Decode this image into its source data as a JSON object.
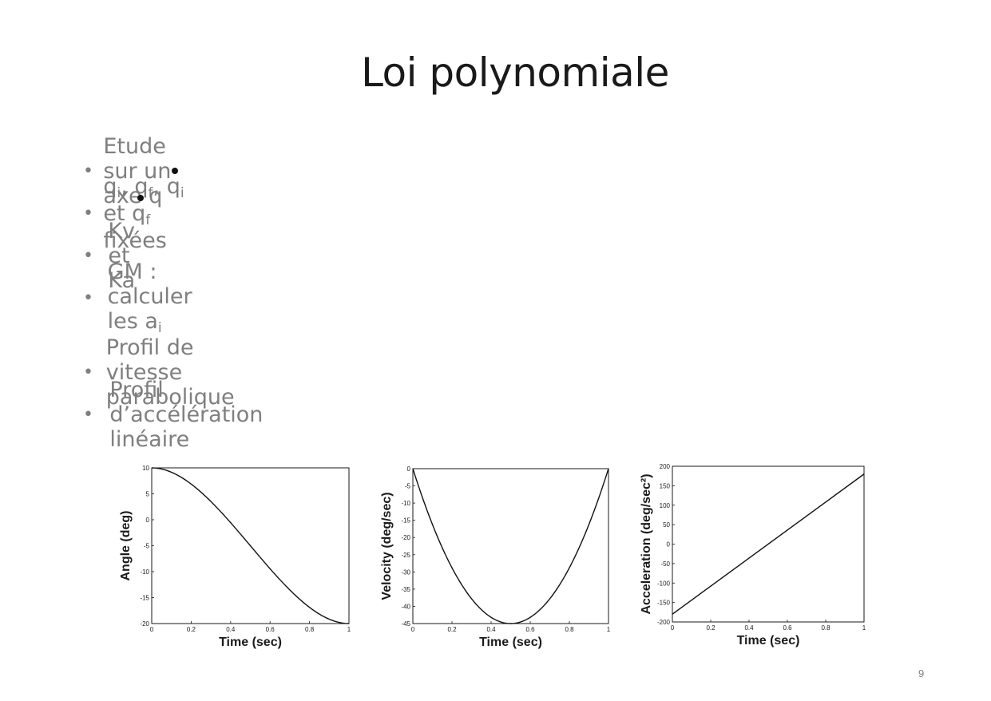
{
  "slide": {
    "title": "Loi polynomiale",
    "page_number": "9",
    "bullet_marker": "•",
    "bullets": {
      "b1": {
        "text": "Etude sur un axe q"
      },
      "b2": {
        "q": "q",
        "i": "i",
        "f": "f",
        "sep": ", ",
        "et": " et ",
        "fixees": " fixées"
      },
      "b3": {
        "text": "Kv et Ka"
      },
      "b4": {
        "text": "GM : calculer les a",
        "sub": "i"
      },
      "b5": {
        "text": "Profil de vitesse parabolique"
      },
      "b6": {
        "text": "Profil d’accélération linéaire"
      }
    }
  },
  "chart_data": [
    {
      "type": "line",
      "xlabel": "Time (sec)",
      "ylabel": "Angle (deg)",
      "xlim": [
        0,
        1
      ],
      "ylim": [
        -20,
        10
      ],
      "xticks": [
        "0",
        "0.2",
        "0.4",
        "0.6",
        "0.8",
        "1"
      ],
      "yticks": [
        "10",
        "5",
        "0",
        "-5",
        "-10",
        "-15",
        "-20"
      ],
      "x": [
        0,
        0.1,
        0.2,
        0.3,
        0.4,
        0.5,
        0.6,
        0.7,
        0.8,
        0.9,
        1.0
      ],
      "y": [
        10,
        9.16,
        6.96,
        3.78,
        0.08,
        -5,
        -9.08,
        -12.78,
        -15.96,
        -18.16,
        -20
      ]
    },
    {
      "type": "line",
      "xlabel": "Time (sec)",
      "ylabel": "Velocity (deg/sec)",
      "xlim": [
        0,
        1
      ],
      "ylim": [
        -45,
        0
      ],
      "xticks": [
        "0",
        "0.2",
        "0.4",
        "0.6",
        "0.8",
        "1"
      ],
      "yticks": [
        "0",
        "-5",
        "-10",
        "-15",
        "-20",
        "-25",
        "-30",
        "-35",
        "-40",
        "-45"
      ],
      "x": [
        0,
        0.1,
        0.2,
        0.3,
        0.4,
        0.5,
        0.6,
        0.7,
        0.8,
        0.9,
        1.0
      ],
      "y": [
        0,
        -16.2,
        -28.8,
        -37.8,
        -43.2,
        -45,
        -43.2,
        -37.8,
        -28.8,
        -16.2,
        0
      ]
    },
    {
      "type": "line",
      "xlabel": "Time (sec)",
      "ylabel": "Acceleration (deg/sec²)",
      "xlim": [
        0,
        1
      ],
      "ylim": [
        -200,
        200
      ],
      "xticks": [
        "0",
        "0.2",
        "0.4",
        "0.6",
        "0.8",
        "1"
      ],
      "yticks": [
        "200",
        "150",
        "100",
        "50",
        "0",
        "-50",
        "-100",
        "-150",
        "-200"
      ],
      "x": [
        0,
        1
      ],
      "y": [
        -180,
        180
      ]
    }
  ]
}
